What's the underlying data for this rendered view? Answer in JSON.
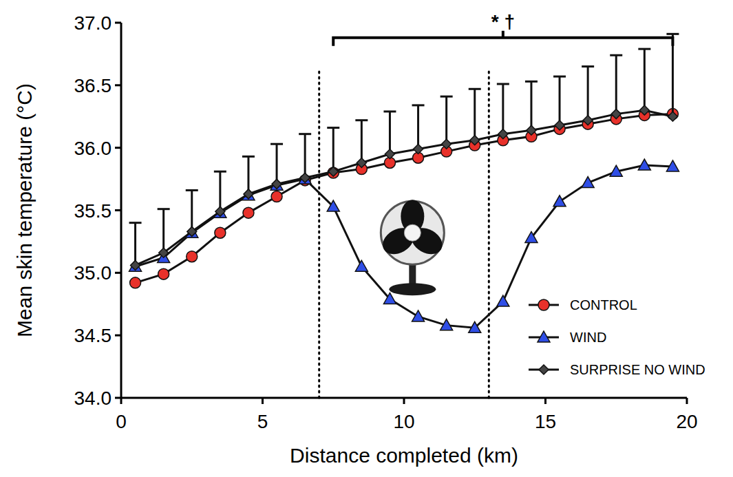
{
  "chart_data": {
    "type": "line",
    "x_label": "Distance completed (km)",
    "y_label": "Mean skin temperature (°C)",
    "x": [
      0.5,
      1.5,
      2.5,
      3.5,
      4.5,
      5.5,
      6.5,
      7.5,
      8.5,
      9.5,
      10.5,
      11.5,
      12.5,
      13.5,
      14.5,
      15.5,
      16.5,
      17.5,
      18.5,
      19.5
    ],
    "xlim": [
      0,
      20
    ],
    "xticks": [
      0,
      5,
      10,
      15,
      20
    ],
    "ylim": [
      34,
      37
    ],
    "yticks": [
      {
        "value": 34,
        "label": "34.0"
      },
      34.5,
      {
        "value": 35,
        "label": "35.0"
      },
      35.5,
      {
        "value": 36,
        "label": "36.0"
      },
      36.5,
      {
        "value": 37,
        "label": "37.0"
      }
    ],
    "grid": false,
    "legend": "lower right",
    "series": [
      {
        "name": "CONTROL",
        "color": "#e8312a",
        "marker": "circle",
        "values": [
          34.92,
          34.99,
          35.13,
          35.32,
          35.48,
          35.61,
          35.74,
          35.8,
          35.83,
          35.88,
          35.92,
          35.97,
          36.02,
          36.06,
          36.09,
          36.15,
          36.19,
          36.23,
          36.26,
          36.27
        ]
      },
      {
        "name": "WIND",
        "color": "#2f4ee6",
        "marker": "triangle",
        "values": [
          35.05,
          35.12,
          35.32,
          35.48,
          35.62,
          35.7,
          35.75,
          35.53,
          35.05,
          34.79,
          34.65,
          34.58,
          34.56,
          34.77,
          35.28,
          35.57,
          35.72,
          35.81,
          35.86,
          35.85
        ]
      },
      {
        "name": "SURPRISE NO WIND",
        "color": "#444444",
        "marker": "diamond",
        "values": [
          35.06,
          35.16,
          35.33,
          35.49,
          35.63,
          35.71,
          35.76,
          35.81,
          35.88,
          35.95,
          35.99,
          36.03,
          36.06,
          36.11,
          36.14,
          36.18,
          36.22,
          36.27,
          36.3,
          36.25
        ],
        "errors": [
          0.34,
          0.35,
          0.33,
          0.32,
          0.3,
          0.32,
          0.35,
          0.35,
          0.34,
          0.34,
          0.35,
          0.38,
          0.41,
          0.4,
          0.39,
          0.39,
          0.43,
          0.47,
          0.49,
          0.66
        ]
      }
    ],
    "vlines": [
      7,
      13
    ],
    "annotations": [
      {
        "text": "* †",
        "x_start": 7.5,
        "x_end": 19.5,
        "y": 36.88
      }
    ]
  }
}
